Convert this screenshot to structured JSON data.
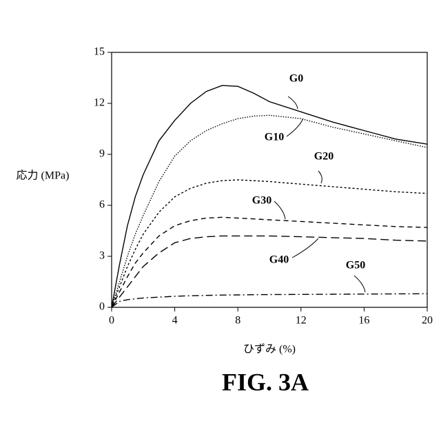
{
  "chart_data": {
    "type": "line",
    "caption": "FIG. 3A",
    "xlabel": "ひずみ (%)",
    "ylabel": "応力 (MPa)",
    "x": [
      0,
      0.5,
      1,
      1.5,
      2,
      3,
      4,
      5,
      6,
      7,
      8,
      9,
      10,
      12,
      14,
      16,
      18,
      20
    ],
    "series": [
      {
        "name": "G0",
        "color": "#000000",
        "style": "solid",
        "values": [
          0,
          2.5,
          4.8,
          6.5,
          7.8,
          9.8,
          11.0,
          12.0,
          12.7,
          13.05,
          13.0,
          12.6,
          12.1,
          11.5,
          10.9,
          10.4,
          9.9,
          9.6
        ]
      },
      {
        "name": "G10",
        "color": "#000000",
        "style": "dotted",
        "values": [
          0,
          1.5,
          3.0,
          4.3,
          5.4,
          7.4,
          8.9,
          9.8,
          10.4,
          10.8,
          11.1,
          11.25,
          11.3,
          11.1,
          10.6,
          10.2,
          9.8,
          9.4
        ]
      },
      {
        "name": "G20",
        "color": "#000000",
        "style": "short-dash",
        "values": [
          0,
          1.2,
          2.4,
          3.4,
          4.3,
          5.6,
          6.5,
          7.0,
          7.3,
          7.45,
          7.5,
          7.45,
          7.4,
          7.25,
          7.1,
          6.95,
          6.8,
          6.7
        ]
      },
      {
        "name": "G30",
        "color": "#000000",
        "style": "dashed",
        "values": [
          0,
          0.9,
          1.8,
          2.6,
          3.2,
          4.2,
          4.8,
          5.1,
          5.25,
          5.3,
          5.25,
          5.2,
          5.15,
          5.05,
          4.95,
          4.85,
          4.75,
          4.7
        ]
      },
      {
        "name": "G40",
        "color": "#000000",
        "style": "long-dash",
        "values": [
          0,
          0.6,
          1.2,
          1.8,
          2.4,
          3.2,
          3.8,
          4.05,
          4.15,
          4.2,
          4.2,
          4.2,
          4.2,
          4.15,
          4.1,
          4.05,
          3.95,
          3.9
        ]
      },
      {
        "name": "G50",
        "color": "#000000",
        "style": "dash-dot",
        "values": [
          0,
          0.35,
          0.45,
          0.5,
          0.55,
          0.6,
          0.65,
          0.68,
          0.7,
          0.72,
          0.73,
          0.74,
          0.75,
          0.76,
          0.77,
          0.78,
          0.79,
          0.8
        ]
      }
    ],
    "xlim": [
      0,
      20
    ],
    "xticks": [
      0,
      4,
      8,
      12,
      16,
      20
    ],
    "ylim": [
      0,
      15
    ],
    "yticks": [
      0,
      3,
      6,
      9,
      12,
      15
    ]
  }
}
